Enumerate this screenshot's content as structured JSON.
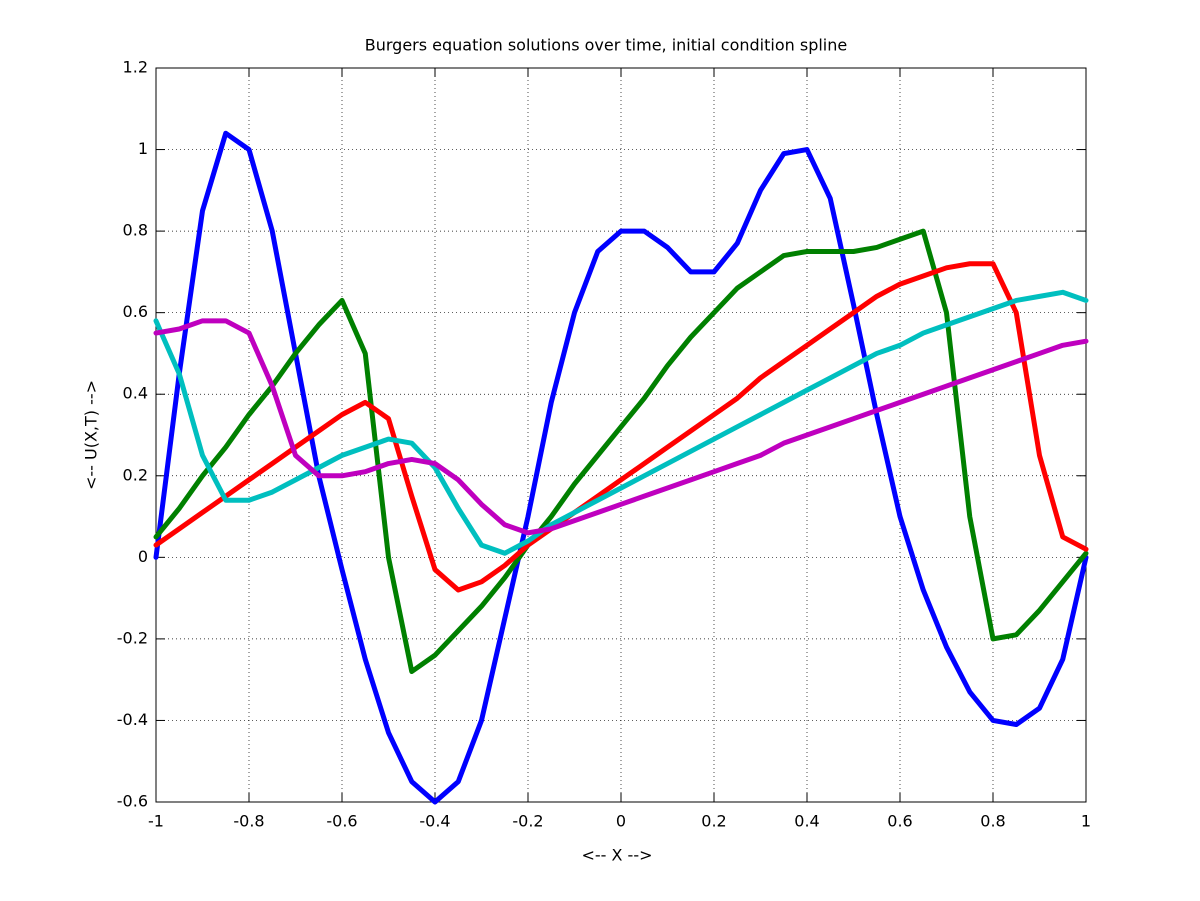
{
  "chart_data": {
    "type": "line",
    "title": "Burgers equation solutions over time, initial condition spline",
    "xlabel": "<-- X -->",
    "ylabel": "<-- U(X,T) -->",
    "x": [
      -1,
      -0.95,
      -0.9,
      -0.85,
      -0.8,
      -0.75,
      -0.7,
      -0.65,
      -0.6,
      -0.55,
      -0.5,
      -0.45,
      -0.4,
      -0.35,
      -0.3,
      -0.25,
      -0.2,
      -0.15,
      -0.1,
      -0.05,
      0,
      0.05,
      0.1,
      0.15,
      0.2,
      0.25,
      0.3,
      0.35,
      0.4,
      0.45,
      0.5,
      0.55,
      0.6,
      0.65,
      0.7,
      0.75,
      0.8,
      0.85,
      0.9,
      0.95,
      1
    ],
    "series": [
      {
        "color": "#0000ff",
        "values": [
          0,
          0.45,
          0.85,
          1.04,
          1.0,
          0.8,
          0.5,
          0.2,
          -0.03,
          -0.25,
          -0.43,
          -0.55,
          -0.6,
          -0.55,
          -0.4,
          -0.15,
          0.1,
          0.38,
          0.6,
          0.75,
          0.8,
          0.8,
          0.76,
          0.7,
          0.7,
          0.77,
          0.9,
          0.99,
          1.0,
          0.88,
          0.62,
          0.35,
          0.1,
          -0.08,
          -0.22,
          -0.33,
          -0.4,
          -0.41,
          -0.37,
          -0.25,
          0
        ]
      },
      {
        "color": "#008000",
        "values": [
          0.05,
          0.12,
          0.2,
          0.27,
          0.35,
          0.42,
          0.5,
          0.57,
          0.63,
          0.5,
          0.0,
          -0.28,
          -0.24,
          -0.18,
          -0.12,
          -0.05,
          0.03,
          0.1,
          0.18,
          0.25,
          0.32,
          0.39,
          0.47,
          0.54,
          0.6,
          0.66,
          0.7,
          0.74,
          0.75,
          0.75,
          0.75,
          0.76,
          0.78,
          0.8,
          0.6,
          0.1,
          -0.2,
          -0.19,
          -0.13,
          -0.06,
          0.01
        ]
      },
      {
        "color": "#ff0000",
        "values": [
          0.03,
          0.07,
          0.11,
          0.15,
          0.19,
          0.23,
          0.27,
          0.31,
          0.35,
          0.38,
          0.34,
          0.15,
          -0.03,
          -0.08,
          -0.06,
          -0.02,
          0.03,
          0.07,
          0.11,
          0.15,
          0.19,
          0.23,
          0.27,
          0.31,
          0.35,
          0.39,
          0.44,
          0.48,
          0.52,
          0.56,
          0.6,
          0.64,
          0.67,
          0.69,
          0.71,
          0.72,
          0.72,
          0.6,
          0.25,
          0.05,
          0.02
        ]
      },
      {
        "color": "#00bfbf",
        "values": [
          0.58,
          0.45,
          0.25,
          0.14,
          0.14,
          0.16,
          0.19,
          0.22,
          0.25,
          0.27,
          0.29,
          0.28,
          0.22,
          0.12,
          0.03,
          0.01,
          0.04,
          0.08,
          0.11,
          0.14,
          0.17,
          0.2,
          0.23,
          0.26,
          0.29,
          0.32,
          0.35,
          0.38,
          0.41,
          0.44,
          0.47,
          0.5,
          0.52,
          0.55,
          0.57,
          0.59,
          0.61,
          0.63,
          0.64,
          0.65,
          0.63
        ]
      },
      {
        "color": "#bf00bf",
        "values": [
          0.55,
          0.56,
          0.58,
          0.58,
          0.55,
          0.42,
          0.25,
          0.2,
          0.2,
          0.21,
          0.23,
          0.24,
          0.23,
          0.19,
          0.13,
          0.08,
          0.06,
          0.07,
          0.09,
          0.11,
          0.13,
          0.15,
          0.17,
          0.19,
          0.21,
          0.23,
          0.25,
          0.28,
          0.3,
          0.32,
          0.34,
          0.36,
          0.38,
          0.4,
          0.42,
          0.44,
          0.46,
          0.48,
          0.5,
          0.52,
          0.53
        ]
      }
    ],
    "xlim": [
      -1,
      1
    ],
    "xticks": [
      -1,
      -0.8,
      -0.6,
      -0.4,
      -0.2,
      0,
      0.2,
      0.4,
      0.6,
      0.8,
      1
    ],
    "ylim": [
      -0.6,
      1.2
    ],
    "yticks": [
      -0.6,
      -0.4,
      -0.2,
      0,
      0.2,
      0.4,
      0.6,
      0.8,
      1,
      1.2
    ],
    "grid": true
  }
}
